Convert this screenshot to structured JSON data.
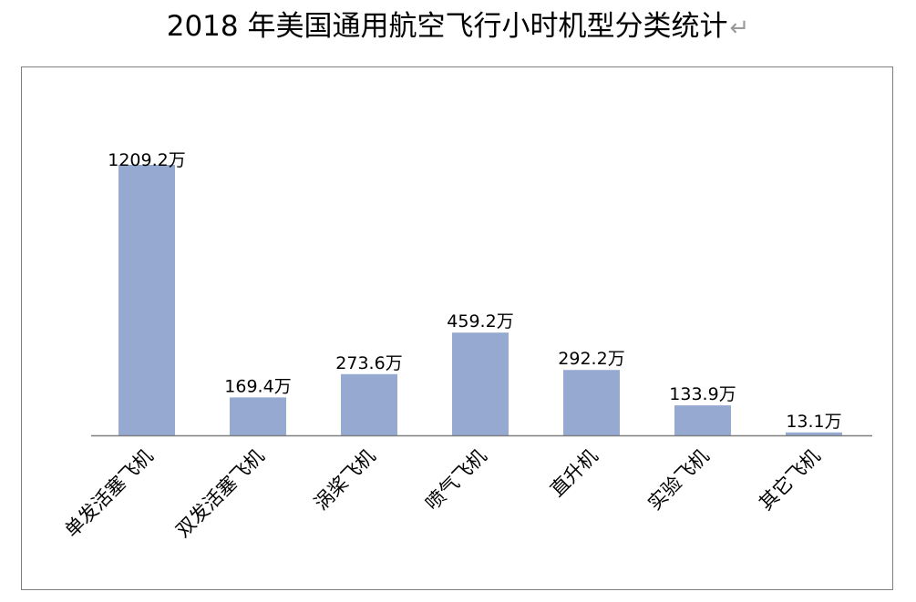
{
  "title": "2018 年美国通用航空飞行小时机型分类统计",
  "title_trailing_mark": "↵",
  "chart_data": {
    "type": "bar",
    "title": "2018 年美国通用航空飞行小时机型分类统计",
    "xlabel": "",
    "ylabel": "",
    "categories": [
      "单发活塞飞机",
      "双发活塞飞机",
      "涡桨飞机",
      "喷气飞机",
      "直升机",
      "实验飞机",
      "其它飞机"
    ],
    "values": [
      1209.2,
      169.4,
      273.6,
      459.2,
      292.2,
      133.9,
      13.1
    ],
    "data_labels": [
      "1209.2万",
      "169.4万",
      "273.6万",
      "459.2万",
      "292.2万",
      "133.9万",
      "13.1万"
    ],
    "ylim": [
      0,
      1209.2
    ],
    "grid": false,
    "legend": "none",
    "bar_color": "#95a9d1",
    "axis_color": "#7f7f7f"
  }
}
